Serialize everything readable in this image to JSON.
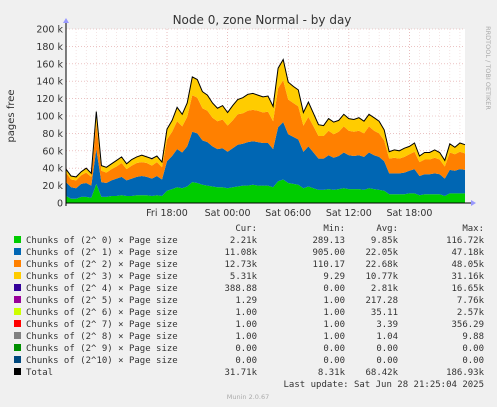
{
  "chart_data": {
    "type": "area",
    "title": "Node 0, zone Normal - by day",
    "ylabel": "pages free",
    "side_label": "RRDTOOL / TOBI OETIKER",
    "ylim": [
      0,
      200000
    ],
    "yticks": [
      0,
      20000,
      40000,
      60000,
      80000,
      100000,
      120000,
      140000,
      160000,
      180000,
      200000
    ],
    "ytick_labels": [
      "0",
      "20 k",
      "40 k",
      "60 k",
      "80 k",
      "100 k",
      "120 k",
      "140 k",
      "160 k",
      "180 k",
      "200 k"
    ],
    "x_label_ticks": [
      {
        "hours": 10,
        "label": "Fri 18:00"
      },
      {
        "hours": 16,
        "label": "Sat 00:00"
      },
      {
        "hours": 22,
        "label": "Sat 06:00"
      },
      {
        "hours": 28,
        "label": "Sat 12:00"
      },
      {
        "hours": 34,
        "label": "Sat 18:00"
      }
    ],
    "x_range_hours": [
      0,
      39.5
    ],
    "x_step_hours": 0.5,
    "grid": true,
    "total_values": [
      39000,
      31000,
      30000,
      36000,
      40000,
      34000,
      105000,
      43000,
      41000,
      45000,
      49000,
      53000,
      45000,
      50000,
      53000,
      55000,
      53000,
      51000,
      54000,
      47000,
      85000,
      95000,
      110000,
      102000,
      115000,
      145000,
      142000,
      128000,
      124000,
      115000,
      109000,
      112000,
      104000,
      112000,
      119000,
      121000,
      125000,
      126000,
      124000,
      122000,
      123000,
      111000,
      155000,
      165000,
      139000,
      134000,
      130000,
      104000,
      116000,
      103000,
      90000,
      89000,
      97000,
      93000,
      95000,
      102000,
      97000,
      96000,
      98000,
      94000,
      102000,
      98000,
      94000,
      84000,
      59000,
      61000,
      60000,
      63000,
      65000,
      69000,
      54000,
      58000,
      58000,
      61000,
      58000,
      49000,
      68000,
      64000,
      69000,
      67000
    ],
    "series": [
      {
        "name": "Chunks of (2^ 0) × Page size",
        "color": "#00cc00",
        "values": [
          8000,
          5000,
          5000,
          7000,
          7000,
          6000,
          22000,
          7000,
          7000,
          8000,
          8000,
          9000,
          8000,
          8000,
          9000,
          9000,
          9000,
          8000,
          9000,
          8000,
          14000,
          16000,
          18000,
          17000,
          19000,
          24000,
          23000,
          21000,
          20000,
          19000,
          18000,
          18000,
          17000,
          18000,
          19000,
          20000,
          20000,
          21000,
          20000,
          20000,
          20000,
          18000,
          25000,
          27000,
          23000,
          22000,
          21000,
          17000,
          19000,
          17000,
          15000,
          15000,
          16000,
          15000,
          16000,
          17000,
          16000,
          16000,
          16000,
          15000,
          17000,
          16000,
          15000,
          14000,
          10000,
          10000,
          10000,
          10000,
          11000,
          11000,
          9000,
          10000,
          10000,
          10000,
          10000,
          8000,
          11000,
          11000,
          11000,
          11000
        ]
      },
      {
        "name": "Chunks of (2^ 1) × Page size",
        "color": "#0066b3",
        "values": [
          16000,
          13000,
          12000,
          15000,
          16000,
          14000,
          40000,
          17000,
          16000,
          18000,
          20000,
          21000,
          18000,
          20000,
          21000,
          22000,
          21000,
          20000,
          22000,
          19000,
          34000,
          38000,
          44000,
          41000,
          46000,
          58000,
          57000,
          51000,
          50000,
          46000,
          44000,
          45000,
          42000,
          45000,
          48000,
          48000,
          50000,
          50000,
          50000,
          49000,
          49000,
          44000,
          62000,
          66000,
          56000,
          54000,
          52000,
          42000,
          46000,
          41000,
          36000,
          36000,
          39000,
          37000,
          38000,
          41000,
          39000,
          38000,
          39000,
          38000,
          41000,
          39000,
          38000,
          34000,
          24000,
          24000,
          24000,
          25000,
          26000,
          28000,
          22000,
          23000,
          23000,
          24000,
          23000,
          20000,
          27000,
          26000,
          28000,
          27000
        ]
      },
      {
        "name": "Chunks of (2^ 2) × Page size",
        "color": "#ff8000",
        "values": [
          11000,
          9000,
          9000,
          10000,
          12000,
          10000,
          30000,
          13000,
          12000,
          13000,
          14000,
          16000,
          13000,
          15000,
          16000,
          16000,
          16000,
          15000,
          16000,
          14000,
          25000,
          28000,
          32000,
          30000,
          34000,
          42000,
          41000,
          37000,
          36000,
          33000,
          32000,
          33000,
          30000,
          32000,
          35000,
          35000,
          36000,
          36000,
          36000,
          35000,
          36000,
          32000,
          45000,
          48000,
          40000,
          39000,
          38000,
          30000,
          34000,
          30000,
          26000,
          26000,
          28000,
          27000,
          28000,
          30000,
          28000,
          28000,
          28000,
          27000,
          30000,
          28000,
          27000,
          24000,
          17000,
          18000,
          17000,
          18000,
          19000,
          20000,
          16000,
          17000,
          17000,
          18000,
          17000,
          14000,
          20000,
          19000,
          20000,
          19000
        ]
      },
      {
        "name": "Chunks of (2^ 3) × Page size",
        "color": "#ffcc00",
        "values": [
          4000,
          4000,
          4000,
          4000,
          5000,
          4000,
          13000,
          6000,
          6000,
          6000,
          7000,
          7000,
          6000,
          7000,
          7000,
          8000,
          7000,
          7000,
          7000,
          6000,
          12000,
          13000,
          16000,
          14000,
          16000,
          21000,
          21000,
          19000,
          18000,
          17000,
          15000,
          16000,
          15000,
          17000,
          17000,
          18000,
          19000,
          19000,
          18000,
          18000,
          18000,
          17000,
          23000,
          24000,
          20000,
          19000,
          19000,
          15000,
          17000,
          15000,
          13000,
          12000,
          14000,
          14000,
          13000,
          14000,
          14000,
          14000,
          15000,
          14000,
          14000,
          15000,
          14000,
          12000,
          8000,
          9000,
          9000,
          10000,
          9000,
          10000,
          7000,
          8000,
          8000,
          9000,
          8000,
          7000,
          10000,
          8000,
          10000,
          10000
        ]
      },
      {
        "name": "Chunks of (2^ 4) × Page size",
        "color": "#330099",
        "values": [
          0,
          0,
          0,
          0,
          0,
          0,
          0,
          0,
          0,
          0,
          0,
          0,
          0,
          0,
          0,
          0,
          0,
          1000,
          0,
          0,
          0,
          0,
          0,
          0,
          0,
          0,
          0,
          0,
          0,
          0,
          0,
          0,
          0,
          0,
          0,
          0,
          0,
          0,
          0,
          0,
          0,
          0,
          0,
          0,
          0,
          0,
          0,
          0,
          0,
          0,
          0,
          0,
          0,
          0,
          0,
          0,
          0,
          0,
          0,
          0,
          0,
          0,
          0,
          0,
          0,
          0,
          0,
          0,
          0,
          0,
          0,
          0,
          0,
          0,
          0,
          0,
          0,
          0,
          0,
          0
        ]
      },
      {
        "name": "Chunks of (2^ 5) × Page size",
        "color": "#990099",
        "values": [
          0,
          0,
          0,
          0,
          0,
          0,
          0,
          0,
          0,
          0,
          0,
          0,
          0,
          0,
          0,
          0,
          0,
          0,
          0,
          0,
          0,
          0,
          0,
          0,
          0,
          0,
          0,
          0,
          0,
          0,
          0,
          0,
          0,
          0,
          0,
          0,
          0,
          0,
          0,
          0,
          0,
          0,
          0,
          0,
          0,
          0,
          0,
          0,
          0,
          0,
          0,
          0,
          0,
          0,
          0,
          0,
          0,
          0,
          0,
          0,
          0,
          0,
          0,
          0,
          0,
          0,
          0,
          0,
          0,
          0,
          0,
          0,
          0,
          0,
          0,
          0,
          0,
          0,
          0,
          0
        ]
      },
      {
        "name": "Chunks of (2^ 6) × Page size",
        "color": "#ccff00",
        "values": [
          0,
          0,
          0,
          0,
          0,
          0,
          0,
          0,
          0,
          0,
          0,
          0,
          0,
          0,
          0,
          0,
          0,
          0,
          0,
          0,
          0,
          0,
          0,
          0,
          0,
          0,
          0,
          0,
          0,
          0,
          0,
          0,
          0,
          0,
          0,
          0,
          0,
          0,
          0,
          0,
          0,
          0,
          0,
          0,
          0,
          0,
          0,
          0,
          0,
          0,
          0,
          0,
          0,
          0,
          0,
          0,
          0,
          0,
          0,
          0,
          0,
          0,
          0,
          0,
          0,
          0,
          0,
          0,
          0,
          0,
          0,
          0,
          0,
          0,
          0,
          0,
          0,
          0,
          0,
          0
        ]
      },
      {
        "name": "Chunks of (2^ 7) × Page size",
        "color": "#ff0000",
        "values": [
          0,
          0,
          0,
          0,
          0,
          0,
          0,
          0,
          0,
          0,
          0,
          0,
          0,
          0,
          0,
          0,
          0,
          0,
          0,
          0,
          0,
          0,
          0,
          0,
          0,
          0,
          0,
          0,
          0,
          0,
          0,
          0,
          0,
          0,
          0,
          0,
          0,
          0,
          0,
          0,
          0,
          0,
          0,
          0,
          0,
          0,
          0,
          0,
          0,
          0,
          0,
          0,
          0,
          0,
          0,
          0,
          0,
          0,
          0,
          0,
          0,
          0,
          0,
          0,
          0,
          0,
          0,
          0,
          0,
          0,
          0,
          0,
          0,
          0,
          0,
          0,
          0,
          0,
          0,
          0
        ]
      },
      {
        "name": "Chunks of (2^ 8) × Page size",
        "color": "#808080",
        "values": [
          0,
          0,
          0,
          0,
          0,
          0,
          0,
          0,
          0,
          0,
          0,
          0,
          0,
          0,
          0,
          0,
          0,
          0,
          0,
          0,
          0,
          0,
          0,
          0,
          0,
          0,
          0,
          0,
          0,
          0,
          0,
          0,
          0,
          0,
          0,
          0,
          0,
          0,
          0,
          0,
          0,
          0,
          0,
          0,
          0,
          0,
          0,
          0,
          0,
          0,
          0,
          0,
          0,
          0,
          0,
          0,
          0,
          0,
          0,
          0,
          0,
          0,
          0,
          0,
          0,
          0,
          0,
          0,
          0,
          0,
          0,
          0,
          0,
          0,
          0,
          0,
          0,
          0,
          0,
          0
        ]
      },
      {
        "name": "Chunks of (2^ 9) × Page size",
        "color": "#008f00",
        "values": [
          0,
          0,
          0,
          0,
          0,
          0,
          0,
          0,
          0,
          0,
          0,
          0,
          0,
          0,
          0,
          0,
          0,
          0,
          0,
          0,
          0,
          0,
          0,
          0,
          0,
          0,
          0,
          0,
          0,
          0,
          0,
          0,
          0,
          0,
          0,
          0,
          0,
          0,
          0,
          0,
          0,
          0,
          0,
          0,
          0,
          0,
          0,
          0,
          0,
          0,
          0,
          0,
          0,
          0,
          0,
          0,
          0,
          0,
          0,
          0,
          0,
          0,
          0,
          0,
          0,
          0,
          0,
          0,
          0,
          0,
          0,
          0,
          0,
          0,
          0,
          0,
          0,
          0,
          0,
          0
        ]
      },
      {
        "name": "Chunks of (2^10) × Page size",
        "color": "#00487d",
        "values": [
          0,
          0,
          0,
          0,
          0,
          0,
          0,
          0,
          0,
          0,
          0,
          0,
          0,
          0,
          0,
          0,
          0,
          0,
          0,
          0,
          0,
          0,
          0,
          0,
          0,
          0,
          0,
          0,
          0,
          0,
          0,
          0,
          0,
          0,
          0,
          0,
          0,
          0,
          0,
          0,
          0,
          0,
          0,
          0,
          0,
          0,
          0,
          0,
          0,
          0,
          0,
          0,
          0,
          0,
          0,
          0,
          0,
          0,
          0,
          0,
          0,
          0,
          0,
          0,
          0,
          0,
          0,
          0,
          0,
          0,
          0,
          0,
          0,
          0,
          0,
          0,
          0,
          0,
          0,
          0
        ]
      }
    ],
    "total_line_color": "#000000",
    "legend_headers": [
      "Cur:",
      "Min:",
      "Avg:",
      "Max:"
    ],
    "legend_rows": [
      {
        "name": "Chunks of (2^ 0) × Page size",
        "color": "#00cc00",
        "cur": "2.21k",
        "min": "289.13",
        "avg": "9.85k",
        "max": "116.72k"
      },
      {
        "name": "Chunks of (2^ 1) × Page size",
        "color": "#0066b3",
        "cur": "11.08k",
        "min": "905.00",
        "avg": "22.05k",
        "max": "47.18k"
      },
      {
        "name": "Chunks of (2^ 2) × Page size",
        "color": "#ff8000",
        "cur": "12.73k",
        "min": "110.17",
        "avg": "22.68k",
        "max": "48.05k"
      },
      {
        "name": "Chunks of (2^ 3) × Page size",
        "color": "#ffcc00",
        "cur": "5.31k",
        "min": "9.29",
        "avg": "10.77k",
        "max": "31.16k"
      },
      {
        "name": "Chunks of (2^ 4) × Page size",
        "color": "#330099",
        "cur": "388.88",
        "min": "0.00",
        "avg": "2.81k",
        "max": "16.65k"
      },
      {
        "name": "Chunks of (2^ 5) × Page size",
        "color": "#990099",
        "cur": "1.29",
        "min": "1.00",
        "avg": "217.28",
        "max": "7.76k"
      },
      {
        "name": "Chunks of (2^ 6) × Page size",
        "color": "#ccff00",
        "cur": "1.00",
        "min": "1.00",
        "avg": "35.11",
        "max": "2.57k"
      },
      {
        "name": "Chunks of (2^ 7) × Page size",
        "color": "#ff0000",
        "cur": "1.00",
        "min": "1.00",
        "avg": "3.39",
        "max": "356.29"
      },
      {
        "name": "Chunks of (2^ 8) × Page size",
        "color": "#808080",
        "cur": "1.00",
        "min": "1.00",
        "avg": "1.04",
        "max": "9.88"
      },
      {
        "name": "Chunks of (2^ 9) × Page size",
        "color": "#008f00",
        "cur": "0.00",
        "min": "0.00",
        "avg": "0.00",
        "max": "0.00"
      },
      {
        "name": "Chunks of (2^10) × Page size",
        "color": "#00487d",
        "cur": "0.00",
        "min": "0.00",
        "avg": "0.00",
        "max": "0.00"
      },
      {
        "name": "Total",
        "color": "#000000",
        "cur": "31.71k",
        "min": "8.31k",
        "avg": "68.42k",
        "max": "186.93k"
      }
    ],
    "last_update": "Last update: Sat Jun 28 21:25:04 2025",
    "footer": "Munin 2.0.67"
  }
}
